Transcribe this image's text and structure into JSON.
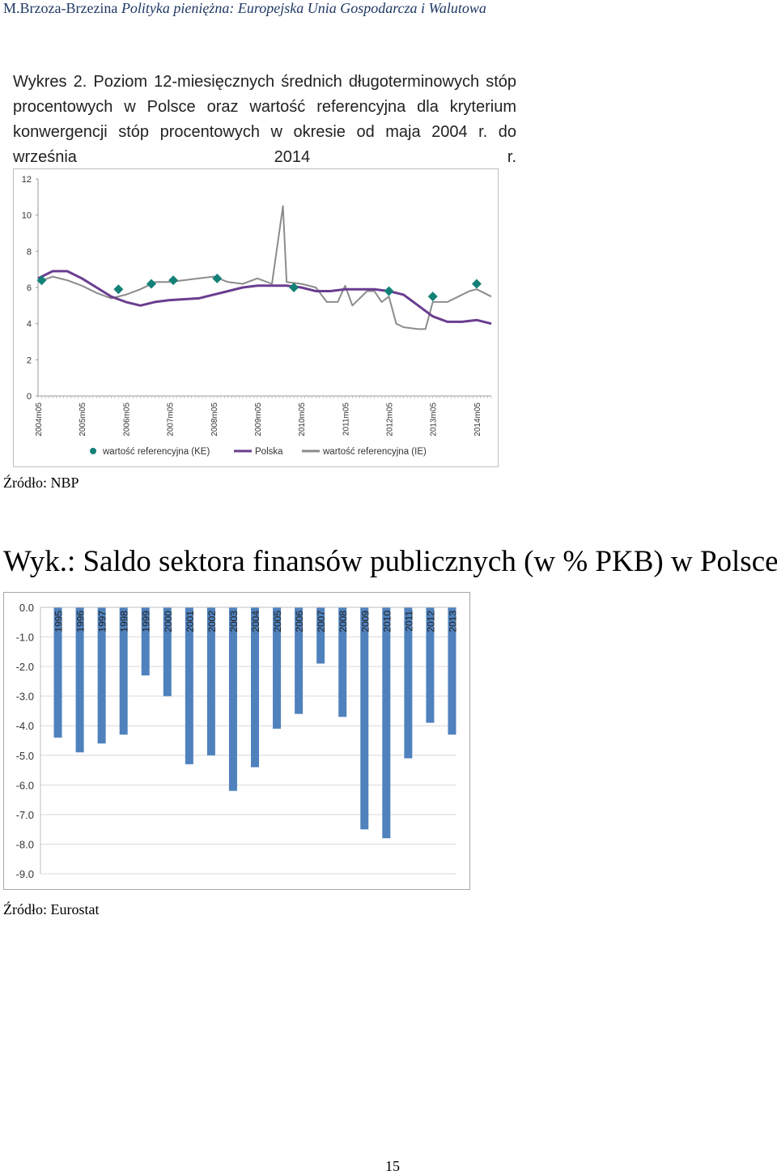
{
  "header": {
    "author": "M.Brzoza-Brzezina",
    "work": "Polityka pieniężna: Europejska Unia Gospodarcza i Walutowa"
  },
  "figure1": {
    "caption": "Wykres 2. Poziom 12-miesięcznych średnich długoterminowych stóp procentowych w Polsce oraz wartość referencyjna dla kryterium konwergencji stóp procentowych w okresie od maja 2004 r. do września 2014 r.",
    "source": "Źródło: NBP"
  },
  "figure2": {
    "title": "Wyk.: Saldo sektora finansów publicznych (w % PKB) w Polsce",
    "source": "Źródło: Eurostat"
  },
  "page_number": "15",
  "colors": {
    "header": "#1f3864",
    "ke": "#138177",
    "polska": "#6a3d8f",
    "ie": "#8c8c8c",
    "bar": "#4f81bd"
  },
  "chart_data": [
    {
      "type": "line",
      "title": "",
      "ylim": [
        0,
        12
      ],
      "y_ticks": [
        "0",
        "2",
        "4",
        "6",
        "8",
        "10",
        "12"
      ],
      "x_tick_labels": [
        "2004m05",
        "2005m05",
        "2006m05",
        "2007m05",
        "2008m05",
        "2009m05",
        "2010m05",
        "2011m05",
        "2012m05",
        "2013m05",
        "2014m05"
      ],
      "x_start": "2004m05",
      "x_end": "2014m09",
      "legend_position": "bottom",
      "grid": false,
      "series": [
        {
          "name": "wartość referencyjna (KE)",
          "style": "markers",
          "points": [
            {
              "x": "2004m06",
              "y": 6.4
            },
            {
              "x": "2006m03",
              "y": 5.9
            },
            {
              "x": "2006m12",
              "y": 6.2
            },
            {
              "x": "2007m06",
              "y": 6.4
            },
            {
              "x": "2008m06",
              "y": 6.5
            },
            {
              "x": "2010m03",
              "y": 6.0
            },
            {
              "x": "2012m05",
              "y": 5.8
            },
            {
              "x": "2013m05",
              "y": 5.5
            },
            {
              "x": "2014m05",
              "y": 6.2
            }
          ]
        },
        {
          "name": "Polska",
          "style": "line",
          "points": [
            {
              "x": "2004m05",
              "y": 6.5
            },
            {
              "x": "2004m09",
              "y": 6.9
            },
            {
              "x": "2005m01",
              "y": 6.9
            },
            {
              "x": "2005m05",
              "y": 6.5
            },
            {
              "x": "2005m09",
              "y": 6.0
            },
            {
              "x": "2006m01",
              "y": 5.5
            },
            {
              "x": "2006m05",
              "y": 5.2
            },
            {
              "x": "2006m09",
              "y": 5.0
            },
            {
              "x": "2007m01",
              "y": 5.2
            },
            {
              "x": "2007m05",
              "y": 5.3
            },
            {
              "x": "2008m01",
              "y": 5.4
            },
            {
              "x": "2008m05",
              "y": 5.6
            },
            {
              "x": "2008m09",
              "y": 5.8
            },
            {
              "x": "2009m01",
              "y": 6.0
            },
            {
              "x": "2009m05",
              "y": 6.1
            },
            {
              "x": "2009m09",
              "y": 6.1
            },
            {
              "x": "2010m01",
              "y": 6.1
            },
            {
              "x": "2010m05",
              "y": 6.0
            },
            {
              "x": "2010m09",
              "y": 5.8
            },
            {
              "x": "2011m01",
              "y": 5.8
            },
            {
              "x": "2011m05",
              "y": 5.9
            },
            {
              "x": "2011m09",
              "y": 5.9
            },
            {
              "x": "2012m01",
              "y": 5.9
            },
            {
              "x": "2012m05",
              "y": 5.8
            },
            {
              "x": "2012m09",
              "y": 5.6
            },
            {
              "x": "2013m01",
              "y": 5.0
            },
            {
              "x": "2013m05",
              "y": 4.4
            },
            {
              "x": "2013m09",
              "y": 4.1
            },
            {
              "x": "2014m01",
              "y": 4.1
            },
            {
              "x": "2014m05",
              "y": 4.2
            },
            {
              "x": "2014m09",
              "y": 4.0
            }
          ]
        },
        {
          "name": "wartość referencyjna (IE)",
          "style": "line",
          "points": [
            {
              "x": "2004m05",
              "y": 6.3
            },
            {
              "x": "2004m09",
              "y": 6.6
            },
            {
              "x": "2005m01",
              "y": 6.4
            },
            {
              "x": "2005m05",
              "y": 6.1
            },
            {
              "x": "2005m09",
              "y": 5.7
            },
            {
              "x": "2006m01",
              "y": 5.4
            },
            {
              "x": "2006m05",
              "y": 5.6
            },
            {
              "x": "2006m09",
              "y": 5.9
            },
            {
              "x": "2007m01",
              "y": 6.3
            },
            {
              "x": "2007m05",
              "y": 6.3
            },
            {
              "x": "2008m01",
              "y": 6.5
            },
            {
              "x": "2008m05",
              "y": 6.6
            },
            {
              "x": "2008m09",
              "y": 6.3
            },
            {
              "x": "2009m01",
              "y": 6.2
            },
            {
              "x": "2009m05",
              "y": 6.5
            },
            {
              "x": "2009m09",
              "y": 6.2
            },
            {
              "x": "2009m12",
              "y": 10.5
            },
            {
              "x": "2010m01",
              "y": 6.3
            },
            {
              "x": "2010m05",
              "y": 6.2
            },
            {
              "x": "2010m09",
              "y": 6.0
            },
            {
              "x": "2010m12",
              "y": 5.2
            },
            {
              "x": "2011m03",
              "y": 5.2
            },
            {
              "x": "2011m05",
              "y": 6.1
            },
            {
              "x": "2011m07",
              "y": 5.0
            },
            {
              "x": "2011m11",
              "y": 5.8
            },
            {
              "x": "2012m01",
              "y": 5.8
            },
            {
              "x": "2012m03",
              "y": 5.2
            },
            {
              "x": "2012m05",
              "y": 5.5
            },
            {
              "x": "2012m07",
              "y": 4.0
            },
            {
              "x": "2012m09",
              "y": 3.8
            },
            {
              "x": "2013m01",
              "y": 3.7
            },
            {
              "x": "2013m03",
              "y": 3.7
            },
            {
              "x": "2013m05",
              "y": 5.2
            },
            {
              "x": "2013m09",
              "y": 5.2
            },
            {
              "x": "2013m12",
              "y": 5.5
            },
            {
              "x": "2014m03",
              "y": 5.8
            },
            {
              "x": "2014m05",
              "y": 5.9
            },
            {
              "x": "2014m09",
              "y": 5.5
            }
          ]
        }
      ]
    },
    {
      "type": "bar",
      "title": "",
      "categories": [
        "1995",
        "1996",
        "1997",
        "1998",
        "1999",
        "2000",
        "2001",
        "2002",
        "2003",
        "2004",
        "2005",
        "2006",
        "2007",
        "2008",
        "2009",
        "2010",
        "2011",
        "2012",
        "2013"
      ],
      "values": [
        -4.4,
        -4.9,
        -4.6,
        -4.3,
        -2.3,
        -3.0,
        -5.3,
        -5.0,
        -6.2,
        -5.4,
        -4.1,
        -3.6,
        -1.9,
        -3.7,
        -7.5,
        -7.8,
        -5.1,
        -3.9,
        -4.3
      ],
      "ylim": [
        -9,
        0
      ],
      "y_ticks": [
        "0.0",
        "-1.0",
        "-2.0",
        "-3.0",
        "-4.0",
        "-5.0",
        "-6.0",
        "-7.0",
        "-8.0",
        "-9.0"
      ],
      "grid": true
    }
  ]
}
